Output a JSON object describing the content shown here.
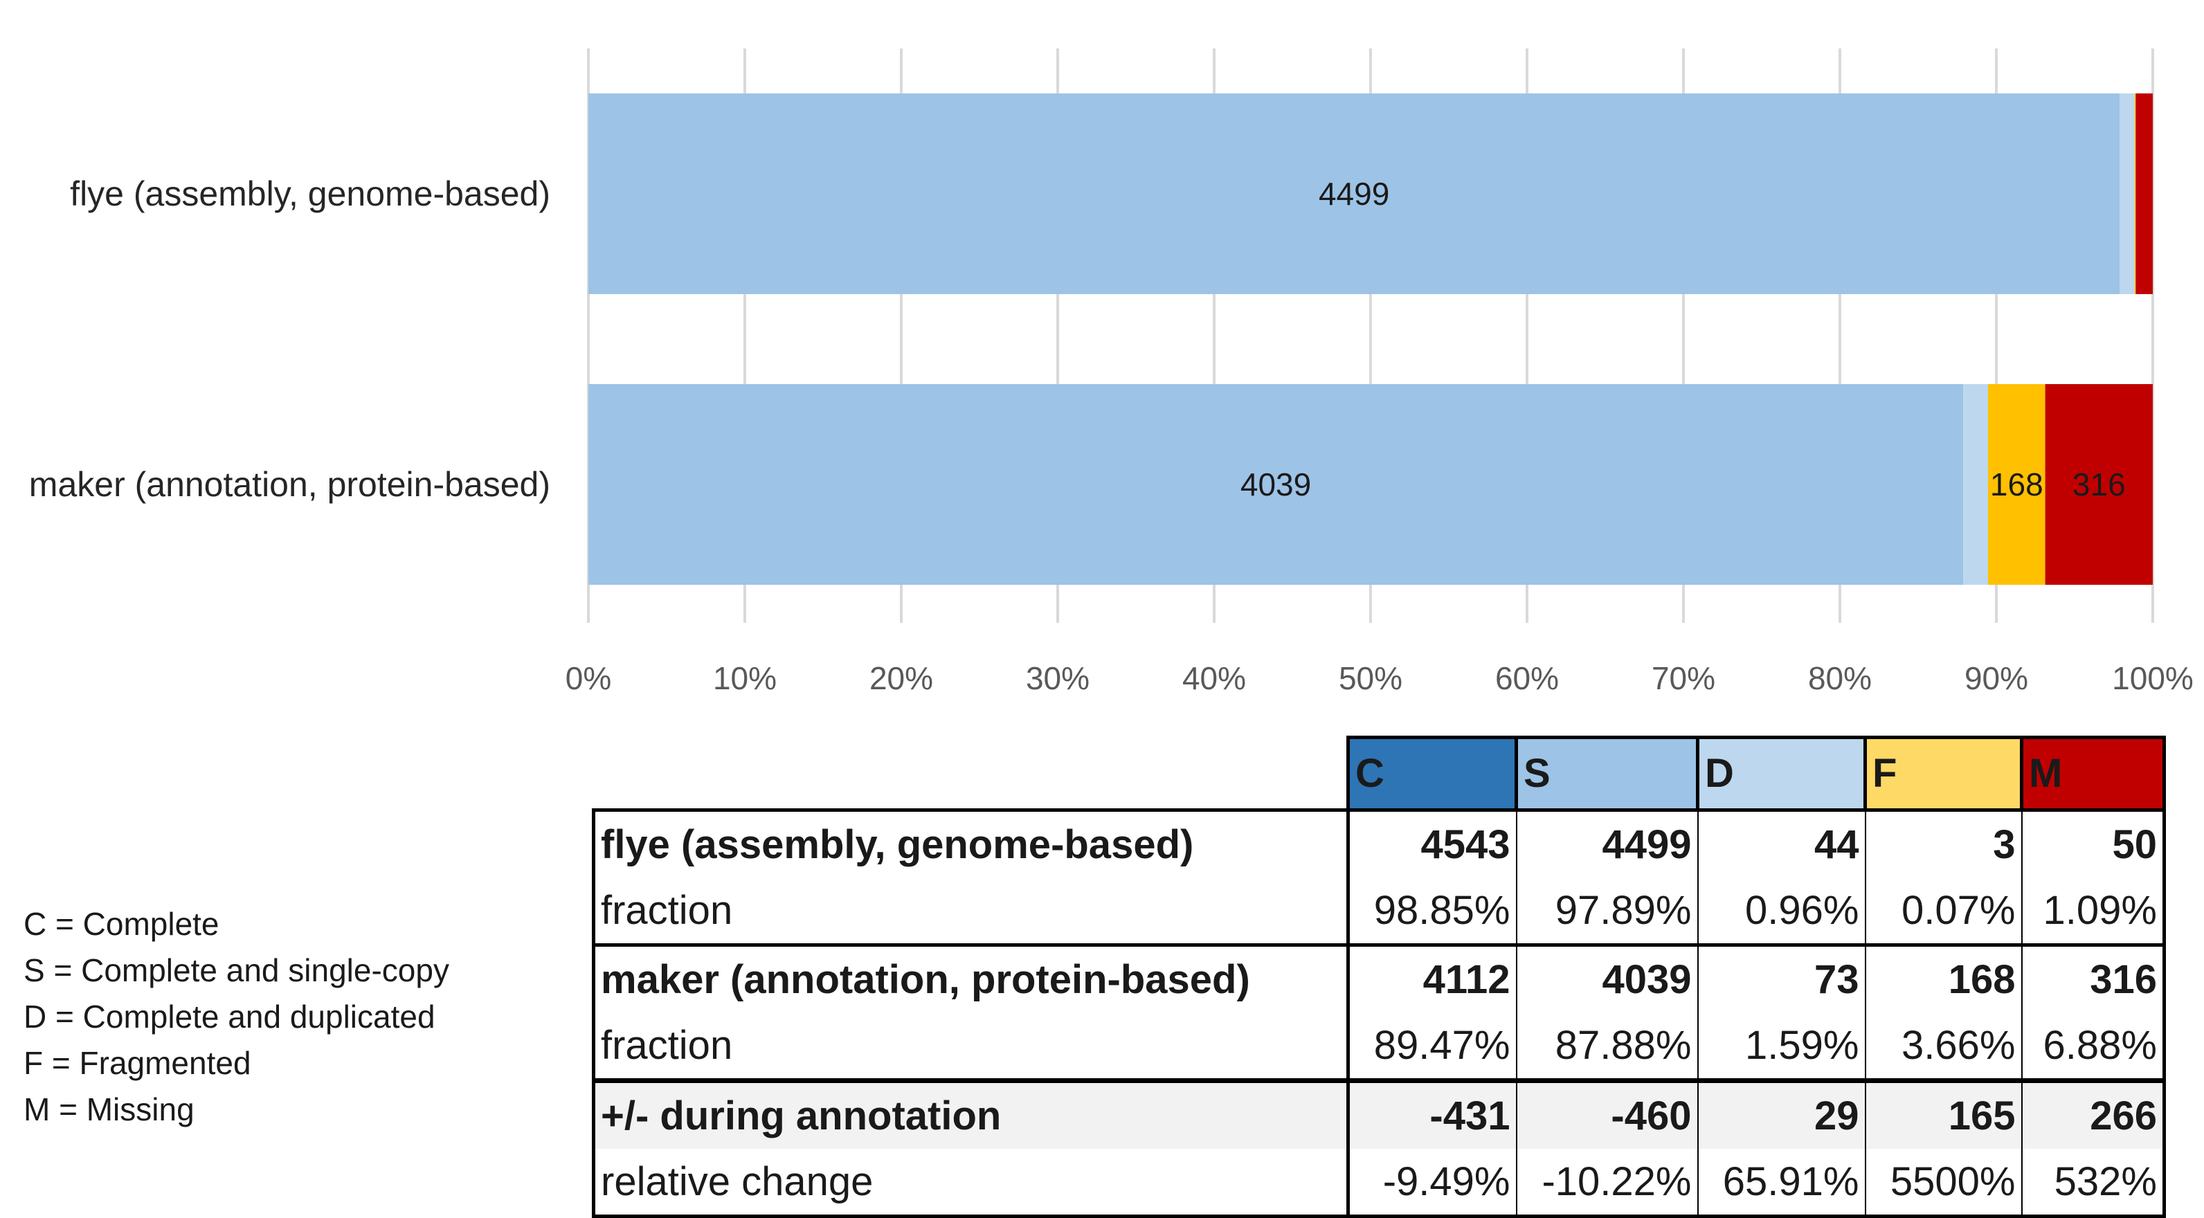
{
  "chart_data": {
    "type": "bar",
    "orientation": "horizontal",
    "stacked": "100%",
    "categories": [
      "flye (assembly, genome-based)",
      "maker (annotation, protein-based)"
    ],
    "series": [
      {
        "key": "S",
        "color": "#9dc3e6",
        "values": [
          4499,
          4039
        ],
        "labels": [
          "4499",
          "4039"
        ]
      },
      {
        "key": "D",
        "color": "#bdd7ee",
        "values": [
          44,
          73
        ],
        "labels": [
          "",
          ""
        ]
      },
      {
        "key": "F",
        "color": "#ffc000",
        "values": [
          3,
          168
        ],
        "labels": [
          "",
          "168"
        ]
      },
      {
        "key": "M",
        "color": "#c00000",
        "values": [
          50,
          316
        ],
        "labels": [
          "",
          "316"
        ]
      }
    ],
    "x_ticks": [
      "0%",
      "10%",
      "20%",
      "30%",
      "40%",
      "50%",
      "60%",
      "70%",
      "80%",
      "90%",
      "100%"
    ],
    "xlim": [
      0,
      100
    ],
    "grid": true,
    "title": "",
    "xlabel": "",
    "ylabel": ""
  },
  "legend_key": [
    "C = Complete",
    "S = Complete and single-copy",
    "D = Complete and duplicated",
    "F = Fragmented",
    "M = Missing"
  ],
  "table": {
    "headers": [
      {
        "text": "C",
        "color": "#2e75b6"
      },
      {
        "text": "S",
        "color": "#9dc3e6"
      },
      {
        "text": "D",
        "color": "#bdd7ee"
      },
      {
        "text": "F",
        "color": "#ffd966"
      },
      {
        "text": "M",
        "color": "#c00000"
      }
    ],
    "rows": [
      {
        "label": "flye (assembly, genome-based)",
        "values": [
          "4543",
          "4499",
          "44",
          "3",
          "50"
        ]
      },
      {
        "label": "fraction",
        "values": [
          "98.85%",
          "97.89%",
          "0.96%",
          "0.07%",
          "1.09%"
        ]
      },
      {
        "label": "maker (annotation, protein-based)",
        "values": [
          "4112",
          "4039",
          "73",
          "168",
          "316"
        ]
      },
      {
        "label": "fraction",
        "values": [
          "89.47%",
          "87.88%",
          "1.59%",
          "3.66%",
          "6.88%"
        ]
      },
      {
        "label": "+/- during annotation",
        "values": [
          "-431",
          "-460",
          "29",
          "165",
          "266"
        ]
      },
      {
        "label": "relative change",
        "values": [
          "-9.49%",
          "-10.22%",
          "65.91%",
          "5500%",
          "532%"
        ]
      }
    ]
  }
}
